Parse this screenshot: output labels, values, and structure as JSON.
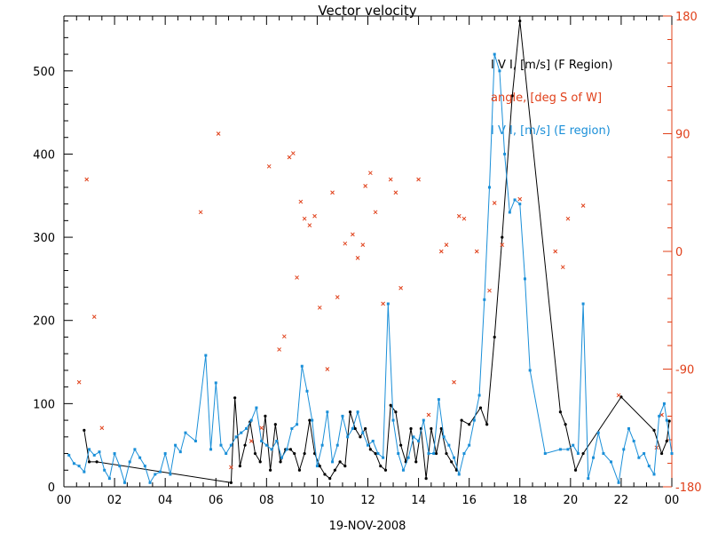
{
  "chart_data": {
    "type": "line",
    "title": "Vector velocity",
    "xlabel": "19-NOV-2008",
    "x_unit": "hours",
    "x_range": [
      0,
      24
    ],
    "x_tick_labels": [
      "00",
      "02",
      "04",
      "06",
      "08",
      "10",
      "12",
      "14",
      "16",
      "18",
      "20",
      "22",
      "00"
    ],
    "y_left_range": [
      0,
      566
    ],
    "y_left_ticks": [
      0,
      100,
      200,
      300,
      400,
      500
    ],
    "y_right_range": [
      -180,
      180
    ],
    "y_right_ticks": [
      -180,
      -90,
      0,
      90,
      180
    ],
    "legend_position": "top-right",
    "colors": {
      "f_region": "#000000",
      "angle": "#e0401a",
      "e_region": "#1a8fd8",
      "axes": "#000000",
      "right_axis": "#e0401a"
    },
    "series": [
      {
        "name": "I V I, [m/s] (F Region)",
        "axis": "left",
        "style": "line-dots",
        "x": [
          0.8,
          1.0,
          1.3,
          6.6,
          6.75,
          6.95,
          7.15,
          7.35,
          7.55,
          7.75,
          7.95,
          8.15,
          8.35,
          8.55,
          8.75,
          8.95,
          9.1,
          9.3,
          9.5,
          9.7,
          9.9,
          10.1,
          10.3,
          10.5,
          10.7,
          10.9,
          11.1,
          11.3,
          11.5,
          11.7,
          11.9,
          12.1,
          12.3,
          12.5,
          12.7,
          12.9,
          13.1,
          13.3,
          13.5,
          13.7,
          13.9,
          14.1,
          14.3,
          14.5,
          14.7,
          14.9,
          15.1,
          15.3,
          15.5,
          15.7,
          16.0,
          16.45,
          16.7,
          17.0,
          17.3,
          17.7,
          18.0,
          19.6,
          19.8,
          20.2,
          20.5,
          22.0,
          23.3,
          23.6,
          23.8,
          23.9
        ],
        "y": [
          68,
          30,
          30,
          5,
          107,
          25,
          50,
          78,
          40,
          30,
          85,
          20,
          75,
          30,
          45,
          45,
          40,
          20,
          40,
          80,
          40,
          25,
          15,
          10,
          20,
          30,
          25,
          90,
          70,
          60,
          70,
          45,
          40,
          25,
          20,
          98,
          90,
          50,
          30,
          70,
          30,
          70,
          10,
          70,
          40,
          70,
          40,
          30,
          20,
          80,
          75,
          95,
          75,
          180,
          300,
          470,
          560,
          90,
          75,
          20,
          40,
          108,
          68,
          40,
          55,
          79
        ]
      },
      {
        "name": "angle, [deg S of W]",
        "axis": "right",
        "style": "markers-x",
        "x": [
          0.6,
          0.9,
          1.2,
          1.5,
          5.4,
          6.1,
          6.6,
          7.4,
          7.8,
          8.1,
          8.5,
          8.7,
          8.9,
          9.05,
          9.2,
          9.35,
          9.5,
          9.7,
          9.9,
          10.1,
          10.4,
          10.6,
          10.8,
          11.1,
          11.4,
          11.6,
          11.8,
          11.9,
          12.1,
          12.3,
          12.6,
          12.9,
          13.1,
          13.3,
          14.0,
          14.4,
          14.9,
          15.1,
          15.4,
          15.6,
          15.8,
          16.3,
          16.8,
          17.0,
          17.3,
          18.0,
          19.4,
          19.7,
          19.9,
          20.5,
          21.9,
          23.4,
          23.6
        ],
        "y": [
          -100,
          55,
          -50,
          -135,
          30,
          90,
          -165,
          -145,
          -135,
          65,
          -75,
          -65,
          72,
          75,
          -20,
          38,
          25,
          20,
          27,
          -43,
          -90,
          45,
          -35,
          6,
          13,
          -5,
          5,
          50,
          60,
          30,
          -40,
          55,
          45,
          -28,
          55,
          -125,
          0,
          5,
          -100,
          27,
          25,
          0,
          -30,
          37,
          5,
          40,
          0,
          -12,
          25,
          35,
          -110,
          -150,
          -125
        ]
      },
      {
        "name": "I V I, [m/s] (E region)",
        "axis": "left",
        "style": "line-squares",
        "x": [
          0.2,
          0.4,
          0.6,
          0.8,
          1.0,
          1.2,
          1.4,
          1.6,
          1.8,
          2.0,
          2.2,
          2.4,
          2.6,
          2.8,
          3.0,
          3.2,
          3.4,
          3.6,
          3.8,
          4.0,
          4.2,
          4.4,
          4.6,
          4.8,
          5.2,
          5.6,
          5.8,
          6.0,
          6.2,
          6.4,
          6.6,
          6.8,
          7.0,
          7.2,
          7.4,
          7.6,
          7.8,
          8.0,
          8.2,
          8.4,
          8.6,
          8.8,
          9.0,
          9.2,
          9.4,
          9.6,
          9.8,
          10.0,
          10.2,
          10.4,
          10.6,
          10.8,
          11.0,
          11.2,
          11.4,
          11.6,
          11.8,
          12.0,
          12.2,
          12.4,
          12.6,
          12.8,
          13.0,
          13.2,
          13.4,
          13.6,
          13.8,
          14.0,
          14.2,
          14.4,
          14.6,
          14.8,
          15.0,
          15.2,
          15.4,
          15.6,
          15.8,
          16.0,
          16.2,
          16.4,
          16.6,
          16.8,
          17.0,
          17.2,
          17.4,
          17.6,
          17.8,
          18.0,
          18.2,
          18.4,
          19.0,
          19.6,
          19.9,
          20.1,
          20.3,
          20.5,
          20.7,
          20.9,
          21.1,
          21.3,
          21.6,
          21.9,
          22.1,
          22.3,
          22.5,
          22.7,
          22.9,
          23.1,
          23.3,
          23.5,
          23.7,
          23.8,
          24.0
        ],
        "y": [
          38,
          28,
          25,
          18,
          45,
          38,
          42,
          20,
          10,
          40,
          25,
          5,
          30,
          45,
          35,
          25,
          5,
          15,
          18,
          40,
          15,
          50,
          42,
          65,
          55,
          158,
          45,
          125,
          50,
          40,
          50,
          60,
          65,
          70,
          80,
          95,
          55,
          50,
          45,
          55,
          35,
          45,
          70,
          75,
          145,
          115,
          80,
          25,
          50,
          90,
          30,
          50,
          85,
          60,
          70,
          90,
          65,
          50,
          55,
          40,
          35,
          220,
          80,
          40,
          20,
          35,
          60,
          55,
          80,
          40,
          40,
          105,
          60,
          50,
          35,
          15,
          40,
          50,
          80,
          110,
          225,
          360,
          520,
          500,
          400,
          330,
          345,
          340,
          250,
          140,
          40,
          45,
          45,
          50,
          40,
          220,
          10,
          35,
          65,
          40,
          30,
          5,
          45,
          70,
          55,
          35,
          40,
          25,
          15,
          85,
          100,
          80,
          40
        ]
      }
    ]
  }
}
